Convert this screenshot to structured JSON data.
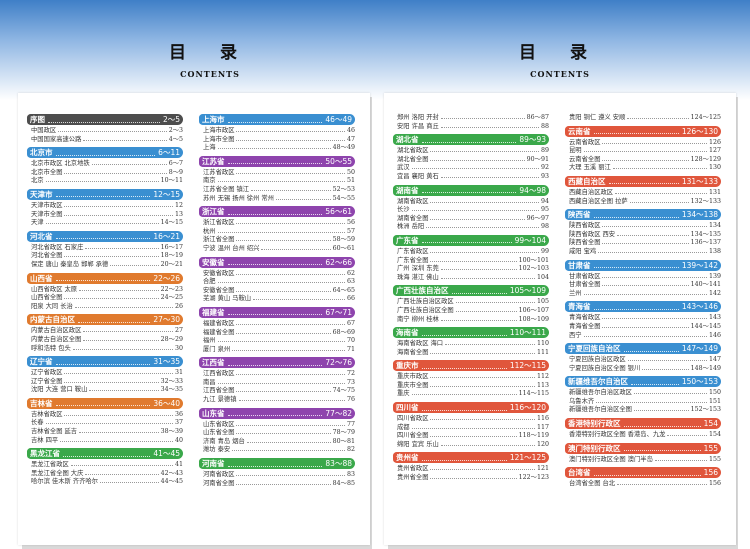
{
  "pages": [
    {
      "title": "目 录",
      "subtitle": "CONTENTS"
    },
    {
      "title": "目 录",
      "subtitle": "CONTENTS"
    }
  ],
  "columns": [
    [
      {
        "name": "序图",
        "pages": "2～5",
        "color": "#4d4d4d",
        "items": [
          {
            "t": "中国政区",
            "p": "2～3"
          },
          {
            "t": "中国国家高速公路",
            "p": "4～5"
          }
        ]
      },
      {
        "name": "北京市",
        "pages": "6～11",
        "color": "#3a8fd1",
        "items": [
          {
            "t": "北京市政区 北京地铁",
            "p": "6～7"
          },
          {
            "t": "北京市全图",
            "p": "8～9"
          },
          {
            "t": "北京",
            "p": "10～11"
          }
        ]
      },
      {
        "name": "天津市",
        "pages": "12～15",
        "color": "#3a8fd1",
        "items": [
          {
            "t": "天津市政区",
            "p": "12"
          },
          {
            "t": "天津市全图",
            "p": "13"
          },
          {
            "t": "天津",
            "p": "14～15"
          }
        ]
      },
      {
        "name": "河北省",
        "pages": "16～21",
        "color": "#3a8fd1",
        "items": [
          {
            "t": "河北省政区 石家庄",
            "p": "16～17"
          },
          {
            "t": "河北省全图",
            "p": "18～19"
          },
          {
            "t": "保定 唐山 秦皇岛 邯郸 承德",
            "p": "20～21"
          }
        ]
      },
      {
        "name": "山西省",
        "pages": "22～26",
        "color": "#e07a2e",
        "items": [
          {
            "t": "山西省政区 太原",
            "p": "22～23"
          },
          {
            "t": "山西省全图",
            "p": "24～25"
          },
          {
            "t": "阳泉 大同 长治",
            "p": "26"
          }
        ]
      },
      {
        "name": "内蒙古自治区",
        "pages": "27～30",
        "color": "#e07a2e",
        "items": [
          {
            "t": "内蒙古自治区政区",
            "p": "27"
          },
          {
            "t": "内蒙古自治区全图",
            "p": "28～29"
          },
          {
            "t": "呼和浩特 包头",
            "p": "30"
          }
        ]
      },
      {
        "name": "辽宁省",
        "pages": "31～35",
        "color": "#3a8fd1",
        "items": [
          {
            "t": "辽宁省政区",
            "p": "31"
          },
          {
            "t": "辽宁省全图",
            "p": "32～33"
          },
          {
            "t": "沈阳 大连 营口 鞍山",
            "p": "34～35"
          }
        ]
      },
      {
        "name": "吉林省",
        "pages": "36～40",
        "color": "#e07a2e",
        "items": [
          {
            "t": "吉林省政区",
            "p": "36"
          },
          {
            "t": "长春",
            "p": "37"
          },
          {
            "t": "吉林省全图 延吉",
            "p": "38～39"
          },
          {
            "t": "吉林 四平",
            "p": "40"
          }
        ]
      },
      {
        "name": "黑龙江省",
        "pages": "41～45",
        "color": "#3aa84a",
        "items": [
          {
            "t": "黑龙江省政区",
            "p": "41"
          },
          {
            "t": "黑龙江省全图 大庆",
            "p": "42～43"
          },
          {
            "t": "哈尔滨 佳木斯 齐齐哈尔",
            "p": "44～45"
          }
        ]
      }
    ],
    [
      {
        "name": "上海市",
        "pages": "46～49",
        "color": "#3a8fd1",
        "items": [
          {
            "t": "上海市政区",
            "p": "46"
          },
          {
            "t": "上海市全图",
            "p": "47"
          },
          {
            "t": "上海",
            "p": "48～49"
          }
        ]
      },
      {
        "name": "江苏省",
        "pages": "50～55",
        "color": "#8e44ad",
        "items": [
          {
            "t": "江苏省政区",
            "p": "50"
          },
          {
            "t": "南京",
            "p": "51"
          },
          {
            "t": "江苏省全图 镇江",
            "p": "52～53"
          },
          {
            "t": "苏州 无锡 扬州 徐州 常州",
            "p": "54～55"
          }
        ]
      },
      {
        "name": "浙江省",
        "pages": "56～61",
        "color": "#8e44ad",
        "items": [
          {
            "t": "浙江省政区",
            "p": "56"
          },
          {
            "t": "杭州",
            "p": "57"
          },
          {
            "t": "浙江省全图",
            "p": "58～59"
          },
          {
            "t": "宁波 温州 台州 绍兴",
            "p": "60～61"
          }
        ]
      },
      {
        "name": "安徽省",
        "pages": "62～66",
        "color": "#8e44ad",
        "items": [
          {
            "t": "安徽省政区",
            "p": "62"
          },
          {
            "t": "合肥",
            "p": "63"
          },
          {
            "t": "安徽省全图",
            "p": "64～65"
          },
          {
            "t": "芜湖 黄山 马鞍山",
            "p": "66"
          }
        ]
      },
      {
        "name": "福建省",
        "pages": "67～71",
        "color": "#8e44ad",
        "items": [
          {
            "t": "福建省政区",
            "p": "67"
          },
          {
            "t": "福建省全图",
            "p": "68～69"
          },
          {
            "t": "福州",
            "p": "70"
          },
          {
            "t": "厦门 泉州",
            "p": "71"
          }
        ]
      },
      {
        "name": "江西省",
        "pages": "72～76",
        "color": "#8e44ad",
        "items": [
          {
            "t": "江西省政区",
            "p": "72"
          },
          {
            "t": "南昌",
            "p": "73"
          },
          {
            "t": "江西省全图",
            "p": "74～75"
          },
          {
            "t": "九江 景德镇",
            "p": "76"
          }
        ]
      },
      {
        "name": "山东省",
        "pages": "77～82",
        "color": "#8e44ad",
        "items": [
          {
            "t": "山东省政区",
            "p": "77"
          },
          {
            "t": "山东省全图",
            "p": "78～79"
          },
          {
            "t": "济南 青岛 烟台",
            "p": "80～81"
          },
          {
            "t": "潍坊 泰安",
            "p": "82"
          }
        ]
      },
      {
        "name": "河南省",
        "pages": "83～88",
        "color": "#3aa84a",
        "items": [
          {
            "t": "河南省政区",
            "p": "83"
          },
          {
            "t": "河南省全图",
            "p": "84～85"
          }
        ]
      }
    ],
    [
      {
        "name": "",
        "pages": "",
        "color": "",
        "items": [
          {
            "t": "郑州 洛阳 开封",
            "p": "86～87"
          },
          {
            "t": "安阳 许昌 商丘",
            "p": "88"
          }
        ]
      },
      {
        "name": "湖北省",
        "pages": "89～93",
        "color": "#3aa84a",
        "items": [
          {
            "t": "湖北省政区",
            "p": "89"
          },
          {
            "t": "湖北省全图",
            "p": "90～91"
          },
          {
            "t": "武汉",
            "p": "92"
          },
          {
            "t": "宜昌 襄阳 黄石",
            "p": "93"
          }
        ]
      },
      {
        "name": "湖南省",
        "pages": "94～98",
        "color": "#3aa84a",
        "items": [
          {
            "t": "湖南省政区",
            "p": "94"
          },
          {
            "t": "长沙",
            "p": "95"
          },
          {
            "t": "湖南省全图",
            "p": "96～97"
          },
          {
            "t": "株洲 岳阳",
            "p": "98"
          }
        ]
      },
      {
        "name": "广东省",
        "pages": "99～104",
        "color": "#3aa84a",
        "items": [
          {
            "t": "广东省政区",
            "p": "99"
          },
          {
            "t": "广东省全图",
            "p": "100～101"
          },
          {
            "t": "广州 深圳 东莞",
            "p": "102～103"
          },
          {
            "t": "珠海 湛江 佛山",
            "p": "104"
          }
        ]
      },
      {
        "name": "广西壮族自治区",
        "pages": "105～109",
        "color": "#3aa84a",
        "items": [
          {
            "t": "广西壮族自治区政区",
            "p": "105"
          },
          {
            "t": "广西壮族自治区全图",
            "p": "106～107"
          },
          {
            "t": "南宁 柳州 桂林",
            "p": "108～109"
          }
        ]
      },
      {
        "name": "海南省",
        "pages": "110～111",
        "color": "#3aa84a",
        "items": [
          {
            "t": "海南省政区 海口",
            "p": "110"
          },
          {
            "t": "海南省全图",
            "p": "111"
          }
        ]
      },
      {
        "name": "重庆市",
        "pages": "112～115",
        "color": "#e0563c",
        "items": [
          {
            "t": "重庆市政区",
            "p": "112"
          },
          {
            "t": "重庆市全图",
            "p": "113"
          },
          {
            "t": "重庆",
            "p": "114～115"
          }
        ]
      },
      {
        "name": "四川省",
        "pages": "116～120",
        "color": "#e0563c",
        "items": [
          {
            "t": "四川省政区",
            "p": "116"
          },
          {
            "t": "成都",
            "p": "117"
          },
          {
            "t": "四川省全图",
            "p": "118～119"
          },
          {
            "t": "绵阳 宜宾 乐山",
            "p": "120"
          }
        ]
      },
      {
        "name": "贵州省",
        "pages": "121～125",
        "color": "#e0563c",
        "items": [
          {
            "t": "贵州省政区",
            "p": "121"
          },
          {
            "t": "贵州省全图",
            "p": "122～123"
          }
        ]
      }
    ],
    [
      {
        "name": "",
        "pages": "",
        "color": "",
        "items": [
          {
            "t": "贵阳 铜仁 遵义 安顺",
            "p": "124～125"
          }
        ]
      },
      {
        "name": "云南省",
        "pages": "126～130",
        "color": "#e0563c",
        "items": [
          {
            "t": "云南省政区",
            "p": "126"
          },
          {
            "t": "昆明",
            "p": "127"
          },
          {
            "t": "云南省全图",
            "p": "128～129"
          },
          {
            "t": "大理 玉溪 丽江",
            "p": "130"
          }
        ]
      },
      {
        "name": "西藏自治区",
        "pages": "131～133",
        "color": "#e0563c",
        "items": [
          {
            "t": "西藏自治区政区",
            "p": "131"
          },
          {
            "t": "西藏自治区全图 拉萨",
            "p": "132～133"
          }
        ]
      },
      {
        "name": "陕西省",
        "pages": "134～138",
        "color": "#3a8fd1",
        "items": [
          {
            "t": "陕西省政区",
            "p": "134"
          },
          {
            "t": "陕西省政区 西安",
            "p": "134～135"
          },
          {
            "t": "陕西省全图",
            "p": "136～137"
          },
          {
            "t": "咸阳 宝鸡",
            "p": "138"
          }
        ]
      },
      {
        "name": "甘肃省",
        "pages": "139～142",
        "color": "#3a8fd1",
        "items": [
          {
            "t": "甘肃省政区",
            "p": "139"
          },
          {
            "t": "甘肃省全图",
            "p": "140～141"
          },
          {
            "t": "兰州",
            "p": "142"
          }
        ]
      },
      {
        "name": "青海省",
        "pages": "143～146",
        "color": "#3a8fd1",
        "items": [
          {
            "t": "青海省政区",
            "p": "143"
          },
          {
            "t": "青海省全图",
            "p": "144～145"
          },
          {
            "t": "西宁",
            "p": "146"
          }
        ]
      },
      {
        "name": "宁夏回族自治区",
        "pages": "147～149",
        "color": "#3a8fd1",
        "items": [
          {
            "t": "宁夏回族自治区政区",
            "p": "147"
          },
          {
            "t": "宁夏回族自治区全图 银川",
            "p": "148～149"
          }
        ]
      },
      {
        "name": "新疆维吾尔自治区",
        "pages": "150～153",
        "color": "#3a8fd1",
        "items": [
          {
            "t": "新疆维吾尔自治区政区",
            "p": "150"
          },
          {
            "t": "乌鲁木齐",
            "p": "151"
          },
          {
            "t": "新疆维吾尔自治区全图",
            "p": "152～153"
          }
        ]
      },
      {
        "name": "香港特别行政区",
        "pages": "154",
        "color": "#e0563c",
        "items": [
          {
            "t": "香港特别行政区全图 香港岛、九龙",
            "p": "154"
          }
        ]
      },
      {
        "name": "澳门特别行政区",
        "pages": "155",
        "color": "#e0563c",
        "items": [
          {
            "t": "澳门特别行政区全图 澳门半岛",
            "p": "155"
          }
        ]
      },
      {
        "name": "台湾省",
        "pages": "156",
        "color": "#e0563c",
        "items": [
          {
            "t": "台湾省全图 台北",
            "p": "156"
          }
        ]
      }
    ]
  ]
}
